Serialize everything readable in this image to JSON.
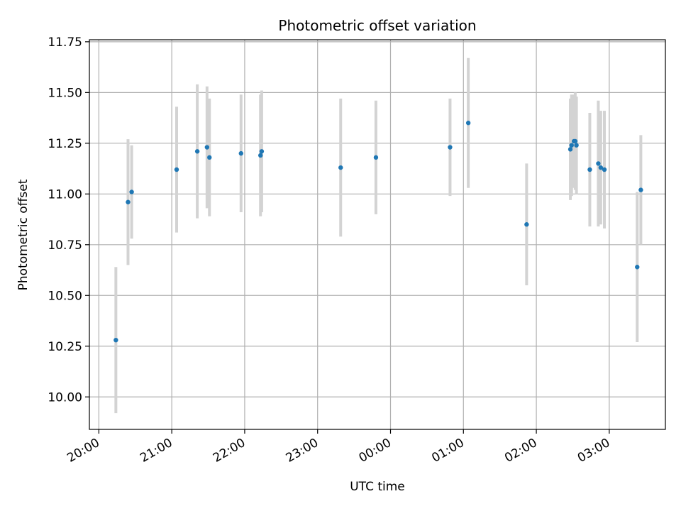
{
  "chart_data": {
    "type": "scatter",
    "title": "Photometric offset variation",
    "xlabel": "UTC time",
    "ylabel": "Photometric offset",
    "x_unit": "hours after 20:00 UTC",
    "xlim": [
      -0.13,
      7.77
    ],
    "ylim": [
      9.84,
      11.76
    ],
    "x_ticks": [
      {
        "value": 0,
        "label": "20:00"
      },
      {
        "value": 1,
        "label": "21:00"
      },
      {
        "value": 2,
        "label": "22:00"
      },
      {
        "value": 3,
        "label": "23:00"
      },
      {
        "value": 4,
        "label": "00:00"
      },
      {
        "value": 5,
        "label": "01:00"
      },
      {
        "value": 6,
        "label": "02:00"
      },
      {
        "value": 7,
        "label": "03:00"
      }
    ],
    "y_ticks": [
      {
        "value": 10.0,
        "label": "10.00"
      },
      {
        "value": 10.25,
        "label": "10.25"
      },
      {
        "value": 10.5,
        "label": "10.50"
      },
      {
        "value": 10.75,
        "label": "10.75"
      },
      {
        "value": 11.0,
        "label": "11.00"
      },
      {
        "value": 11.25,
        "label": "11.25"
      },
      {
        "value": 11.5,
        "label": "11.50"
      },
      {
        "value": 11.75,
        "label": "11.75"
      }
    ],
    "grid": true,
    "marker_color": "#1f77b4",
    "errorbar_color": "#d3d3d3",
    "points": [
      {
        "time": "20:14",
        "y": 10.28,
        "yerr": 0.36
      },
      {
        "time": "20:24",
        "y": 10.96,
        "yerr": 0.31
      },
      {
        "time": "20:27",
        "y": 11.01,
        "yerr": 0.23
      },
      {
        "time": "21:04",
        "y": 11.12,
        "yerr": 0.31
      },
      {
        "time": "21:21",
        "y": 11.21,
        "yerr": 0.33
      },
      {
        "time": "21:29",
        "y": 11.23,
        "yerr": 0.3
      },
      {
        "time": "21:31",
        "y": 11.18,
        "yerr": 0.29
      },
      {
        "time": "21:57",
        "y": 11.2,
        "yerr": 0.29
      },
      {
        "time": "22:13",
        "y": 11.19,
        "yerr": 0.3
      },
      {
        "time": "22:14",
        "y": 11.21,
        "yerr": 0.3
      },
      {
        "time": "23:19",
        "y": 11.13,
        "yerr": 0.34
      },
      {
        "time": "23:48",
        "y": 11.18,
        "yerr": 0.28
      },
      {
        "time": "00:49",
        "y": 11.23,
        "yerr": 0.24
      },
      {
        "time": "01:04",
        "y": 11.35,
        "yerr": 0.32
      },
      {
        "time": "01:52",
        "y": 10.85,
        "yerr": 0.3
      },
      {
        "time": "02:28",
        "y": 11.22,
        "yerr": 0.25
      },
      {
        "time": "02:29",
        "y": 11.24,
        "yerr": 0.25
      },
      {
        "time": "02:31",
        "y": 11.26,
        "yerr": 0.23
      },
      {
        "time": "02:32",
        "y": 11.26,
        "yerr": 0.24
      },
      {
        "time": "02:33",
        "y": 11.24,
        "yerr": 0.24
      },
      {
        "time": "02:44",
        "y": 11.12,
        "yerr": 0.28
      },
      {
        "time": "02:51",
        "y": 11.15,
        "yerr": 0.31
      },
      {
        "time": "02:53",
        "y": 11.13,
        "yerr": 0.28
      },
      {
        "time": "02:56",
        "y": 11.12,
        "yerr": 0.29
      },
      {
        "time": "03:23",
        "y": 10.64,
        "yerr": 0.37
      },
      {
        "time": "03:26",
        "y": 11.02,
        "yerr": 0.27
      }
    ]
  }
}
